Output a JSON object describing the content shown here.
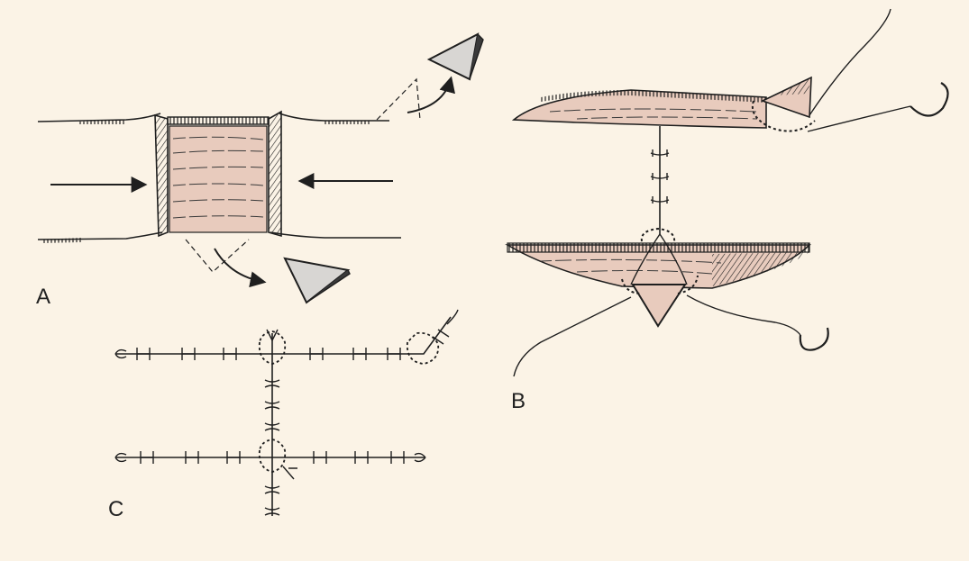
{
  "panels": {
    "a": {
      "label": "A"
    },
    "b": {
      "label": "B"
    },
    "c": {
      "label": "C"
    }
  },
  "colors": {
    "background": "#fbf3e6",
    "wound_bed": "#e8cbbd",
    "triangle_fill": "#d8d6d3",
    "line": "#1f1f1f"
  }
}
